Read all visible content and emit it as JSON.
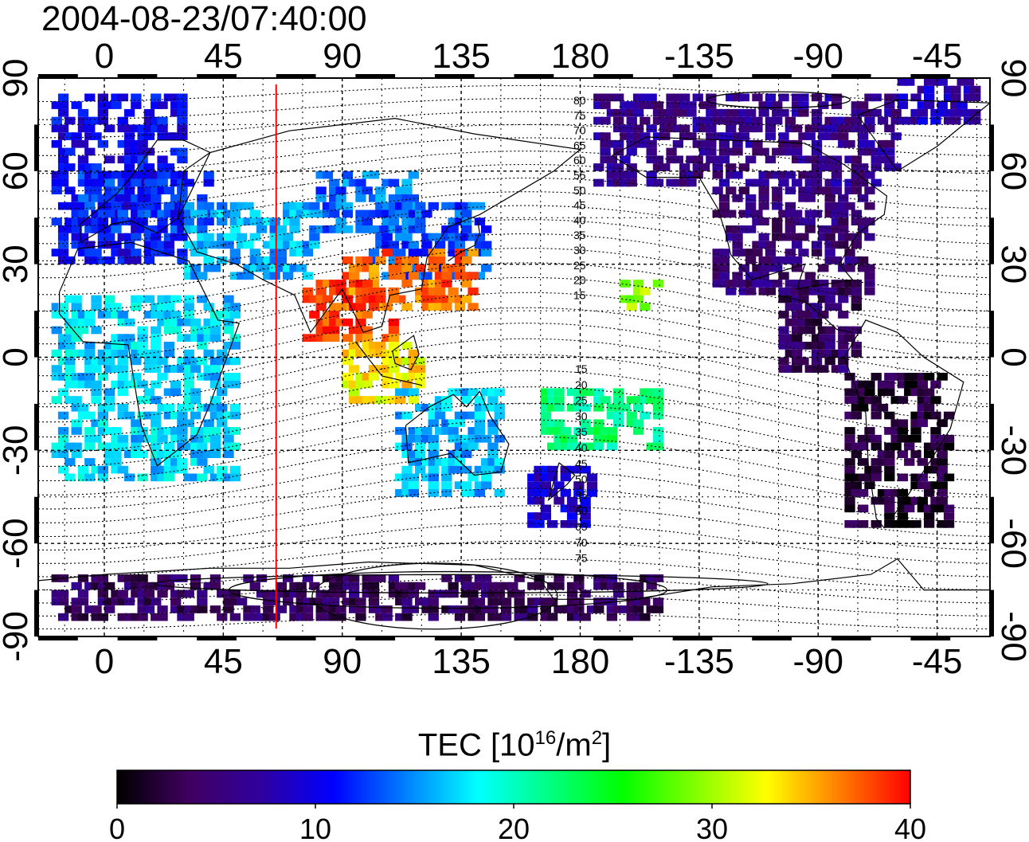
{
  "title": "2004-08-23/07:40:00",
  "axes": {
    "top_labels": [
      "0",
      "45",
      "90",
      "135",
      "180",
      "-135",
      "-90",
      "-45"
    ],
    "bottom_labels": [
      "0",
      "45",
      "90",
      "135",
      "180",
      "-135",
      "-90",
      "-45"
    ],
    "left_labels": [
      "90",
      "60",
      "30",
      "0",
      "-30",
      "-60",
      "-90"
    ],
    "right_labels": [
      "90",
      "60",
      "30",
      "0",
      "-30",
      "-60",
      "-90"
    ],
    "lon_ticks": [
      0,
      45,
      90,
      135,
      180,
      225,
      270,
      315
    ],
    "lat_ticks": [
      90,
      60,
      30,
      0,
      -30,
      -60,
      -90
    ],
    "lon_range": [
      -25,
      335
    ],
    "lat_range": [
      -90,
      90
    ]
  },
  "contour_labels": {
    "north": [
      "80",
      "75",
      "70",
      "65",
      "60",
      "55",
      "50",
      "45",
      "40",
      "35",
      "30",
      "25",
      "20",
      "15"
    ],
    "south": [
      "15",
      "20",
      "25",
      "30",
      "35",
      "40",
      "45",
      "50",
      "55",
      "60",
      "65",
      "70",
      "75"
    ]
  },
  "terminator_longitude": 65,
  "colorbar": {
    "title": "TEC  [10",
    "title_exp": "16",
    "title_mid": "/m",
    "title_exp2": "2",
    "title_end": "]",
    "min": 0,
    "max": 40,
    "tick_labels": [
      "0",
      "10",
      "20",
      "30",
      "40"
    ],
    "colormap": [
      "#000000",
      "#400060",
      "#3000a0",
      "#0000ff",
      "#0080ff",
      "#00ffff",
      "#00ff80",
      "#00ff00",
      "#80ff00",
      "#ffff00",
      "#ff8000",
      "#ff0000"
    ]
  },
  "tec_regions": [
    {
      "lon": [
        -20,
        30
      ],
      "lat": [
        30,
        85
      ],
      "tec": 10.5
    },
    {
      "lon": [
        -10,
        40
      ],
      "lat": [
        40,
        60
      ],
      "tec": 12
    },
    {
      "lon": [
        30,
        80
      ],
      "lat": [
        25,
        50
      ],
      "tec": 16
    },
    {
      "lon": [
        80,
        120
      ],
      "lat": [
        40,
        60
      ],
      "tec": 14
    },
    {
      "lon": [
        100,
        145
      ],
      "lat": [
        25,
        50
      ],
      "tec": 13
    },
    {
      "lon": [
        90,
        140
      ],
      "lat": [
        15,
        35
      ],
      "tec": 37
    },
    {
      "lon": [
        75,
        110
      ],
      "lat": [
        5,
        25
      ],
      "tec": 38
    },
    {
      "lon": [
        90,
        120
      ],
      "lat": [
        -15,
        5
      ],
      "tec": 33
    },
    {
      "lon": [
        -20,
        50
      ],
      "lat": [
        -40,
        20
      ],
      "tec": 17
    },
    {
      "lon": [
        110,
        150
      ],
      "lat": [
        -45,
        -10
      ],
      "tec": 16
    },
    {
      "lon": [
        160,
        185
      ],
      "lat": [
        -55,
        -35
      ],
      "tec": 9
    },
    {
      "lon": [
        165,
        210
      ],
      "lat": [
        -30,
        -10
      ],
      "tec": 22
    },
    {
      "lon": [
        195,
        210
      ],
      "lat": [
        15,
        25
      ],
      "tec": 30
    },
    {
      "lon": [
        185,
        300
      ],
      "lat": [
        55,
        85
      ],
      "tec": 6
    },
    {
      "lon": [
        230,
        290
      ],
      "lat": [
        20,
        55
      ],
      "tec": 5
    },
    {
      "lon": [
        255,
        285
      ],
      "lat": [
        -5,
        25
      ],
      "tec": 4
    },
    {
      "lon": [
        280,
        320
      ],
      "lat": [
        -55,
        -5
      ],
      "tec": 2
    },
    {
      "lon": [
        -20,
        210
      ],
      "lat": [
        -85,
        -70
      ],
      "tec": 4
    },
    {
      "lon": [
        300,
        330
      ],
      "lat": [
        75,
        88
      ],
      "tec": 8
    }
  ]
}
